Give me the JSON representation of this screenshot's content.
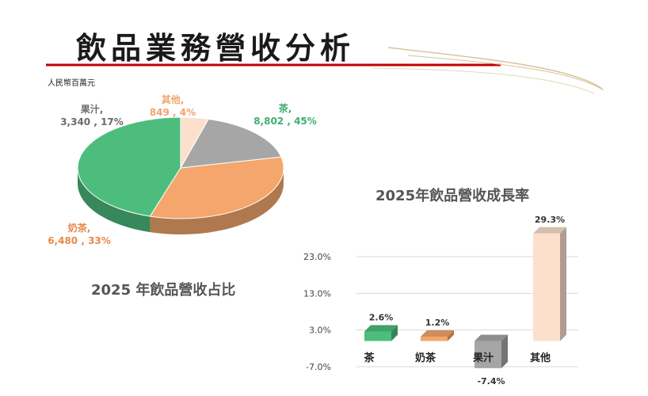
{
  "page": {
    "title": "飲品業務營收分析",
    "unit": "人民幣百萬元"
  },
  "colors": {
    "tea": "#4dbd7e",
    "milk_tea": "#f4a66c",
    "juice": "#a6a6a6",
    "other": "#fce0cc",
    "accent_red": "#c00000",
    "curve": "#d8c39a"
  },
  "chart_data": [
    {
      "type": "pie",
      "title": "2025 年飲品營收占比",
      "categories": [
        "茶",
        "奶茶",
        "果汁",
        "其他"
      ],
      "values": [
        8802,
        6480,
        3340,
        849
      ],
      "percents": [
        45,
        33,
        17,
        4
      ],
      "slice_labels": [
        {
          "name": "茶,",
          "value": "8,802 , 45%"
        },
        {
          "name": "奶茶,",
          "value": "6,480 , 33%"
        },
        {
          "name": "果汁,",
          "value": "3,340 , 17%"
        },
        {
          "name": "其他,",
          "value": "849 , 4%"
        }
      ],
      "style": "3d"
    },
    {
      "type": "bar",
      "title": "2025年飲品營收成長率",
      "categories": [
        "茶",
        "奶茶",
        "果汁",
        "其他"
      ],
      "values": [
        2.6,
        1.2,
        -7.4,
        29.3
      ],
      "data_labels": [
        "2.6%",
        "1.2%",
        "-7.4%",
        "29.3%"
      ],
      "ylim": [
        -7.0,
        23.0
      ],
      "yticks": [
        23.0,
        13.0,
        3.0,
        -7.0
      ],
      "ytick_labels": [
        "23.0%",
        "13.0%",
        "3.0%",
        "-7.0%"
      ],
      "grid": true,
      "style": "3d"
    }
  ]
}
